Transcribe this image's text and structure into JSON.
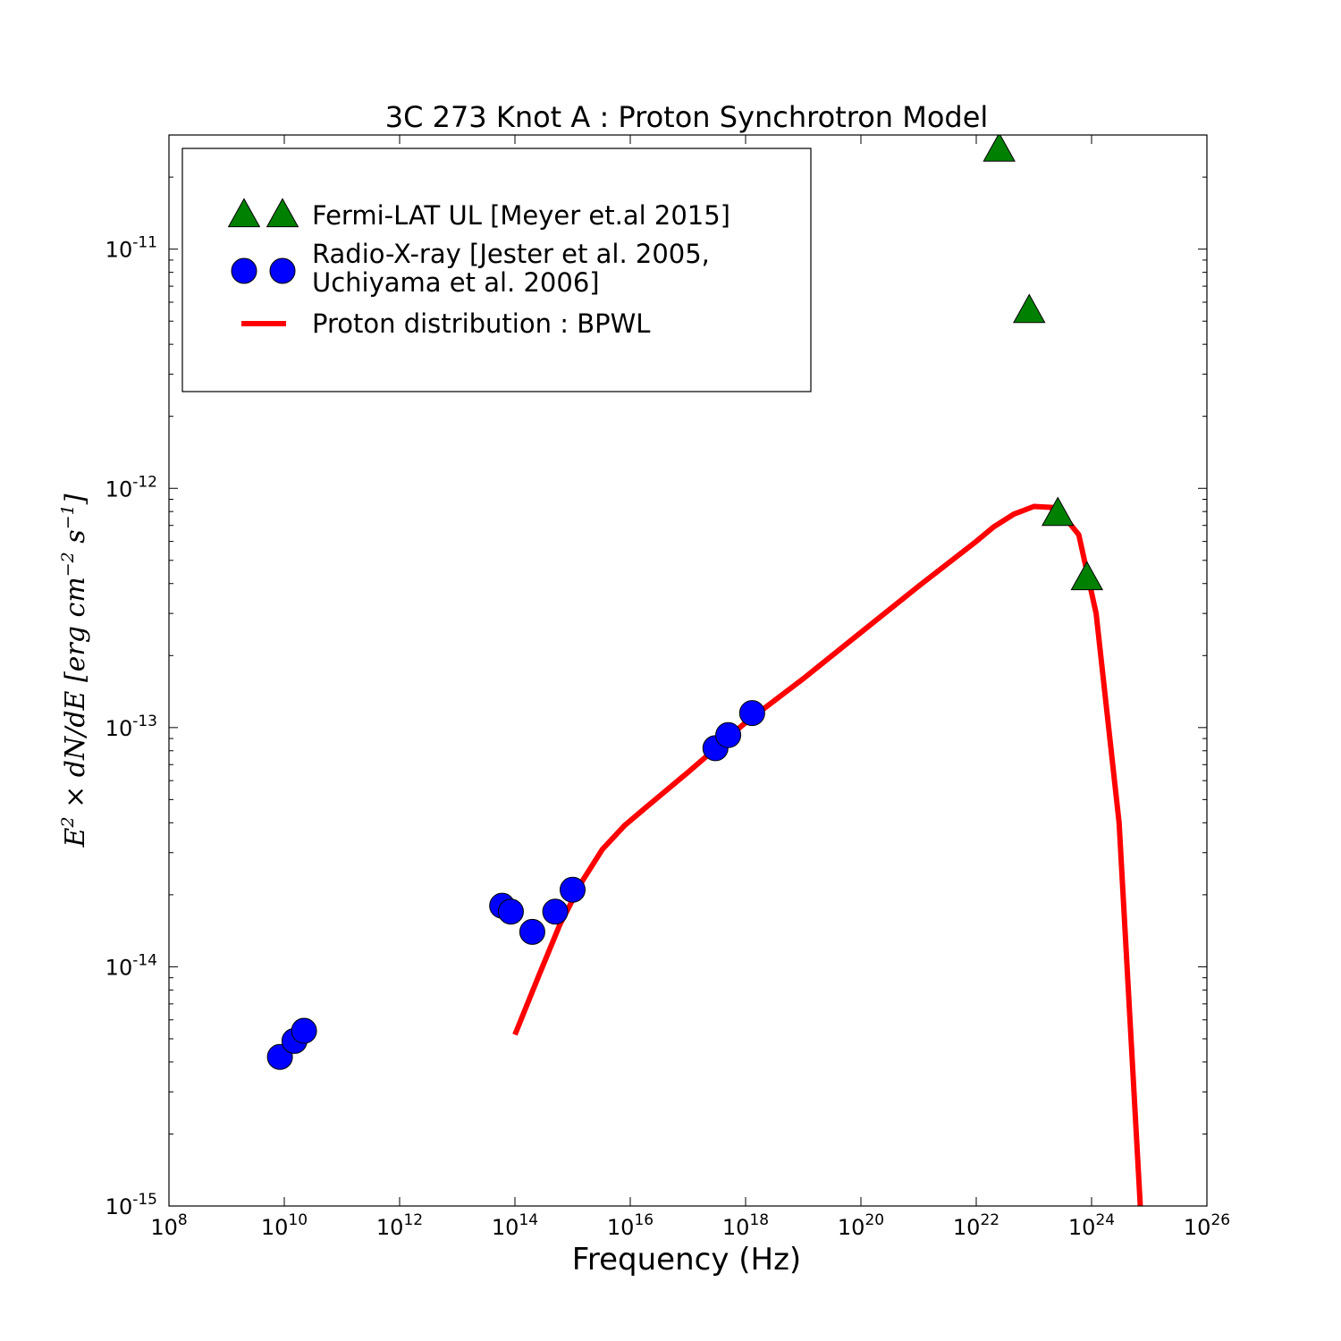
{
  "chart_data": {
    "type": "scatter",
    "title": "3C 273 Knot A : Proton Synchrotron Model",
    "xlabel": "Frequency (Hz)",
    "ylabel": "E² × dN/dE [erg cm⁻² s⁻¹]",
    "x_scale": "log",
    "y_scale": "log",
    "xlim": [
      100000000.0,
      1e+26
    ],
    "ylim": [
      1e-15,
      3e-11
    ],
    "x_ticks": [
      {
        "base": "10",
        "exp": "8",
        "value": 100000000.0
      },
      {
        "base": "10",
        "exp": "10",
        "value": 10000000000.0
      },
      {
        "base": "10",
        "exp": "12",
        "value": 1000000000000.0
      },
      {
        "base": "10",
        "exp": "14",
        "value": 100000000000000.0
      },
      {
        "base": "10",
        "exp": "16",
        "value": 1e+16
      },
      {
        "base": "10",
        "exp": "18",
        "value": 1e+18
      },
      {
        "base": "10",
        "exp": "20",
        "value": 1e+20
      },
      {
        "base": "10",
        "exp": "22",
        "value": 1e+22
      },
      {
        "base": "10",
        "exp": "24",
        "value": 1e+24
      },
      {
        "base": "10",
        "exp": "26",
        "value": 1e+26
      }
    ],
    "y_ticks": [
      {
        "base": "10",
        "exp": "-15",
        "value": 1e-15
      },
      {
        "base": "10",
        "exp": "-14",
        "value": 1e-14
      },
      {
        "base": "10",
        "exp": "-13",
        "value": 1e-13
      },
      {
        "base": "10",
        "exp": "-12",
        "value": 1e-12
      },
      {
        "base": "10",
        "exp": "-11",
        "value": 1e-11
      }
    ],
    "grid": false,
    "legend_position": "top-left",
    "series": [
      {
        "name": "Fermi-LAT UL [Meyer et.al 2015]",
        "kind": "scatter",
        "marker": "triangle",
        "color": "#008000",
        "points": [
          {
            "x": 2.5e+22,
            "y": 2.6e-11
          },
          {
            "x": 8.3e+22,
            "y": 5.5e-12
          },
          {
            "x": 2.6e+23,
            "y": 7.8e-13
          },
          {
            "x": 8.3e+23,
            "y": 4.2e-13
          }
        ]
      },
      {
        "name": "Radio-X-ray [Jester et al. 2005, Uchiyama et al. 2006]",
        "legend_lines": [
          "Radio-X-ray [Jester et al. 2005,",
          "Uchiyama et al. 2006]"
        ],
        "kind": "scatter",
        "marker": "circle",
        "color": "#0000ff",
        "points": [
          {
            "x": 8400000000.0,
            "y": 4.2e-15
          },
          {
            "x": 15000000000.0,
            "y": 4.9e-15
          },
          {
            "x": 22000000000.0,
            "y": 5.4e-15
          },
          {
            "x": 60000000000000.0,
            "y": 1.8e-14
          },
          {
            "x": 85000000000000.0,
            "y": 1.7e-14
          },
          {
            "x": 200000000000000.0,
            "y": 1.4e-14
          },
          {
            "x": 500000000000000.0,
            "y": 1.7e-14
          },
          {
            "x": 1000000000000000.0,
            "y": 2.1e-14
          },
          {
            "x": 3e+17,
            "y": 8.2e-14
          },
          {
            "x": 5e+17,
            "y": 9.3e-14
          },
          {
            "x": 1.3e+18,
            "y": 1.15e-13
          }
        ]
      },
      {
        "name": "Proton distribution : BPWL",
        "kind": "line",
        "color": "#ff0000",
        "points": [
          {
            "x": 100000000000000.0,
            "y": 5.2e-15
          },
          {
            "x": 250000000000000.0,
            "y": 9e-15
          },
          {
            "x": 600000000000000.0,
            "y": 1.5e-14
          },
          {
            "x": 1500000000000000.0,
            "y": 2.3e-14
          },
          {
            "x": 3300000000000000.0,
            "y": 3.1e-14
          },
          {
            "x": 8000000000000000.0,
            "y": 3.9e-14
          },
          {
            "x": 2e+16,
            "y": 4.7e-14
          },
          {
            "x": 1e+17,
            "y": 6.5e-14
          },
          {
            "x": 1e+18,
            "y": 1.05e-13
          },
          {
            "x": 1e+19,
            "y": 1.6e-13
          },
          {
            "x": 1e+20,
            "y": 2.5e-13
          },
          {
            "x": 1e+21,
            "y": 3.9e-13
          },
          {
            "x": 1e+22,
            "y": 6e-13
          },
          {
            "x": 2e+22,
            "y": 6.9e-13
          },
          {
            "x": 4.5e+22,
            "y": 7.8e-13
          },
          {
            "x": 1e+23,
            "y": 8.4e-13
          },
          {
            "x": 2.5e+23,
            "y": 8.3e-13
          },
          {
            "x": 6e+23,
            "y": 6.4e-13
          },
          {
            "x": 1.2e+24,
            "y": 3e-13
          },
          {
            "x": 3e+24,
            "y": 4e-14
          },
          {
            "x": 7e+24,
            "y": 1e-15
          }
        ]
      }
    ]
  }
}
